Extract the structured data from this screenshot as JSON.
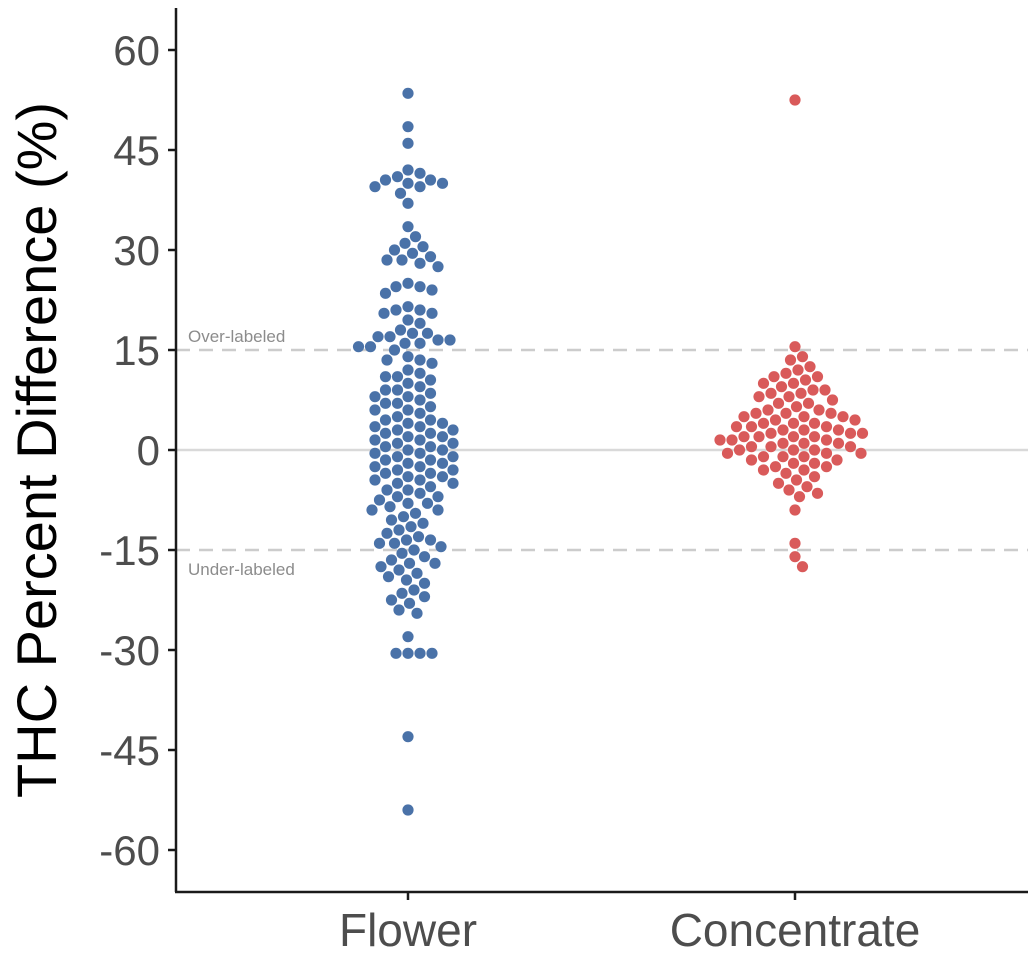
{
  "chart_data": {
    "type": "scatter",
    "subtype": "beeswarm",
    "title": "",
    "ylabel": "THC Percent Difference (%)",
    "xlabel": "",
    "ylim": [
      -66,
      66
    ],
    "yticks": [
      60,
      45,
      30,
      15,
      0,
      -15,
      -30,
      -45,
      -60
    ],
    "categories": [
      "Flower",
      "Concentrate"
    ],
    "grid": false,
    "zero_line": {
      "value": 0,
      "color": "#d9d9d9"
    },
    "reference_lines": [
      {
        "value": 15,
        "label": "Over-labeled",
        "style": "dashed",
        "color": "#cccccc"
      },
      {
        "value": -15,
        "label": "Under-labeled",
        "style": "dashed",
        "color": "#cccccc"
      }
    ],
    "series": [
      {
        "category": "Flower",
        "color": "#4a72a8",
        "values": [
          53.5,
          48.5,
          46,
          42,
          41.5,
          41,
          40.5,
          40.5,
          40,
          40,
          39.5,
          39.5,
          38.5,
          37,
          33.5,
          32,
          31,
          30.5,
          30,
          29.5,
          29,
          28.5,
          28.5,
          28,
          27.5,
          25,
          24.5,
          24.5,
          24,
          23.5,
          21.5,
          21,
          21,
          20.5,
          20.5,
          19.5,
          19,
          18,
          17.5,
          17.5,
          17,
          17,
          16.5,
          16.5,
          16,
          16,
          15.5,
          15.5,
          15,
          14,
          13.5,
          13.5,
          13,
          12,
          11.5,
          11,
          11,
          10.5,
          10,
          9.5,
          9,
          9,
          8.5,
          8,
          8,
          7.5,
          7,
          7,
          6.5,
          6,
          6,
          5.5,
          5,
          4.5,
          4.5,
          4,
          4,
          3.5,
          3.5,
          3,
          3,
          2.5,
          2.5,
          2,
          2,
          1.5,
          1.5,
          1,
          1,
          0.5,
          0.5,
          0,
          0,
          -0.5,
          -0.5,
          -1,
          -1,
          -1.5,
          -1.5,
          -2,
          -2,
          -2.5,
          -2.5,
          -3,
          -3,
          -3.5,
          -3.5,
          -4,
          -4,
          -4.5,
          -4.5,
          -5,
          -5,
          -5.5,
          -6,
          -6,
          -6.5,
          -7,
          -7,
          -7.5,
          -8,
          -8,
          -8.5,
          -9,
          -9,
          -9.5,
          -10,
          -10.5,
          -11,
          -11.5,
          -12,
          -12.5,
          -13,
          -13.5,
          -13.5,
          -14,
          -14,
          -14.5,
          -15,
          -15.5,
          -16,
          -16.5,
          -17,
          -17,
          -17.5,
          -18,
          -18.5,
          -19,
          -19.5,
          -20,
          -21,
          -21.5,
          -22,
          -22.5,
          -23,
          -24,
          -24.5,
          -28,
          -30.5,
          -30.5,
          -30.5,
          -30.5,
          -43,
          -54
        ]
      },
      {
        "category": "Concentrate",
        "color": "#d95a5a",
        "values": [
          52.5,
          15.5,
          14,
          13.5,
          12.5,
          12,
          11.5,
          11,
          11,
          10.5,
          10,
          10,
          9.5,
          9,
          9,
          8.5,
          8.5,
          8,
          8,
          7.5,
          7,
          7,
          6.5,
          6,
          6,
          5.5,
          5.5,
          5.5,
          5,
          5,
          5,
          4.5,
          4.5,
          4,
          4,
          4,
          3.5,
          3.5,
          3.5,
          3,
          3,
          3,
          2.5,
          2.5,
          2.5,
          2,
          2,
          2,
          2,
          1.5,
          1.5,
          1.5,
          1,
          1,
          1,
          0.5,
          0.5,
          0.5,
          0,
          0,
          0,
          -0.5,
          -0.5,
          -0.5,
          -1,
          -1,
          -1,
          -1.5,
          -1.5,
          -2,
          -2,
          -2.5,
          -2.5,
          -3,
          -3,
          -3.5,
          -4,
          -4.5,
          -5,
          -5.5,
          -6,
          -6.5,
          -7,
          -9,
          -14,
          -16,
          -17.5
        ]
      }
    ]
  }
}
